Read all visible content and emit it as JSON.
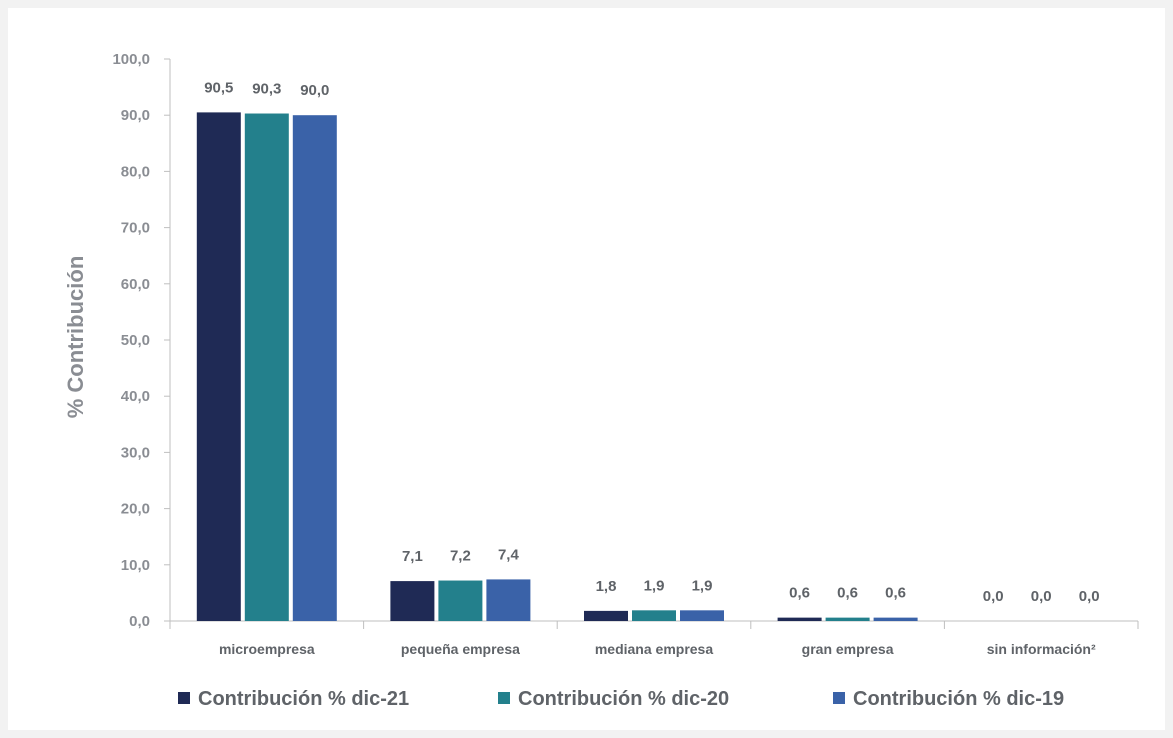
{
  "chart_data": {
    "type": "bar",
    "ylabel": "% Contribución",
    "xlabel": "",
    "title": "",
    "ylim": [
      0,
      100
    ],
    "y_ticks": [
      "0,0",
      "10,0",
      "20,0",
      "30,0",
      "40,0",
      "50,0",
      "60,0",
      "70,0",
      "80,0",
      "90,0",
      "100,0"
    ],
    "categories": [
      "microempresa",
      "pequeña empresa",
      "mediana empresa",
      "gran empresa",
      "sin información²"
    ],
    "series": [
      {
        "name": "Contribución % dic-21",
        "color": "#1f2a55",
        "values": [
          90.5,
          7.1,
          1.8,
          0.6,
          0.0
        ],
        "labels": [
          "90,5",
          "7,1",
          "1,8",
          "0,6",
          "0,0"
        ]
      },
      {
        "name": "Contribución % dic-20",
        "color": "#23808c",
        "values": [
          90.3,
          7.2,
          1.9,
          0.6,
          0.0
        ],
        "labels": [
          "90,3",
          "7,2",
          "1,9",
          "0,6",
          "0,0"
        ]
      },
      {
        "name": "Contribución % dic-19",
        "color": "#3a62a8",
        "values": [
          90.0,
          7.4,
          1.9,
          0.6,
          0.0
        ],
        "labels": [
          "90,0",
          "7,4",
          "1,9",
          "0,6",
          "0,0"
        ]
      }
    ],
    "grid": false,
    "legend_position": "bottom"
  }
}
